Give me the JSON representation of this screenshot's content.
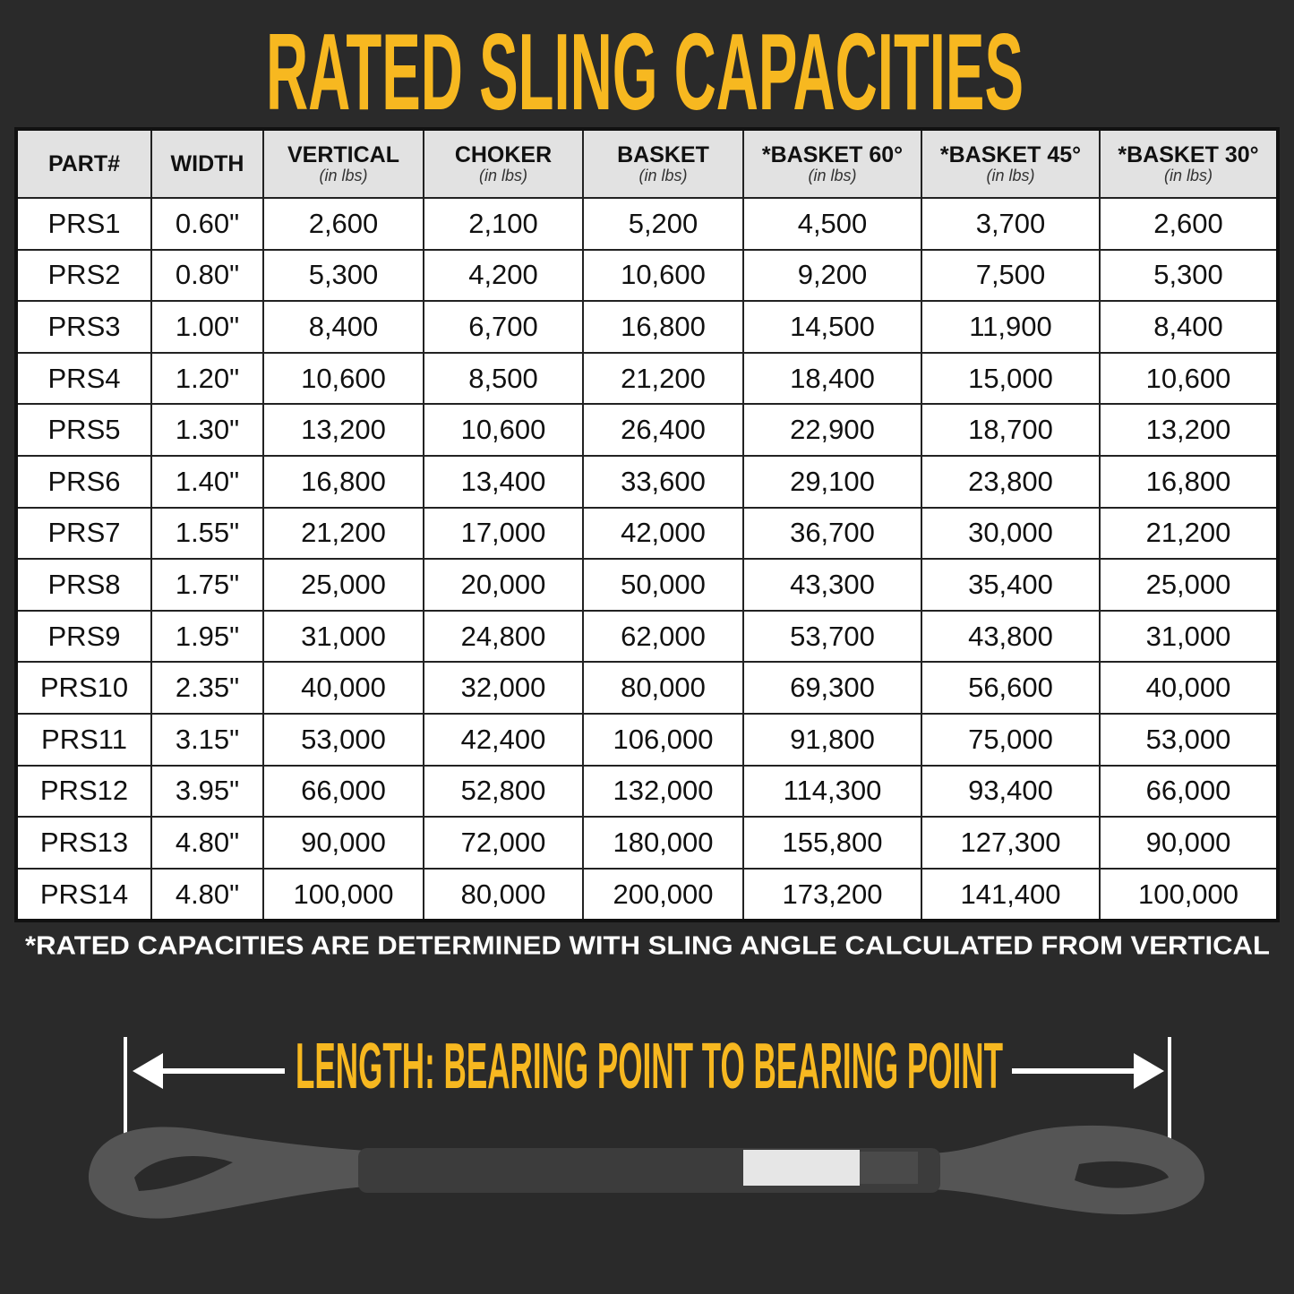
{
  "header": {
    "title": "RATED SLING CAPACITIES"
  },
  "table": {
    "columns": [
      {
        "name": "PART#"
      },
      {
        "name": "WIDTH"
      },
      {
        "name": "VERTICAL",
        "unit": "(in lbs)"
      },
      {
        "name": "CHOKER",
        "unit": "(in lbs)"
      },
      {
        "name": "BASKET",
        "unit": "(in lbs)"
      },
      {
        "name": "*BASKET 60°",
        "unit": "(in lbs)"
      },
      {
        "name": "*BASKET 45°",
        "unit": "(in lbs)"
      },
      {
        "name": "*BASKET 30°",
        "unit": "(in lbs)"
      }
    ],
    "rows": [
      [
        "PRS1",
        "0.60\"",
        "2,600",
        "2,100",
        "5,200",
        "4,500",
        "3,700",
        "2,600"
      ],
      [
        "PRS2",
        "0.80\"",
        "5,300",
        "4,200",
        "10,600",
        "9,200",
        "7,500",
        "5,300"
      ],
      [
        "PRS3",
        "1.00\"",
        "8,400",
        "6,700",
        "16,800",
        "14,500",
        "11,900",
        "8,400"
      ],
      [
        "PRS4",
        "1.20\"",
        "10,600",
        "8,500",
        "21,200",
        "18,400",
        "15,000",
        "10,600"
      ],
      [
        "PRS5",
        "1.30\"",
        "13,200",
        "10,600",
        "26,400",
        "22,900",
        "18,700",
        "13,200"
      ],
      [
        "PRS6",
        "1.40\"",
        "16,800",
        "13,400",
        "33,600",
        "29,100",
        "23,800",
        "16,800"
      ],
      [
        "PRS7",
        "1.55\"",
        "21,200",
        "17,000",
        "42,000",
        "36,700",
        "30,000",
        "21,200"
      ],
      [
        "PRS8",
        "1.75\"",
        "25,000",
        "20,000",
        "50,000",
        "43,300",
        "35,400",
        "25,000"
      ],
      [
        "PRS9",
        "1.95\"",
        "31,000",
        "24,800",
        "62,000",
        "53,700",
        "43,800",
        "31,000"
      ],
      [
        "PRS10",
        "2.35\"",
        "40,000",
        "32,000",
        "80,000",
        "69,300",
        "56,600",
        "40,000"
      ],
      [
        "PRS11",
        "3.15\"",
        "53,000",
        "42,400",
        "106,000",
        "91,800",
        "75,000",
        "53,000"
      ],
      [
        "PRS12",
        "3.95\"",
        "66,000",
        "52,800",
        "132,000",
        "114,300",
        "93,400",
        "66,000"
      ],
      [
        "PRS13",
        "4.80\"",
        "90,000",
        "72,000",
        "180,000",
        "155,800",
        "127,300",
        "90,000"
      ],
      [
        "PRS14",
        "4.80\"",
        "100,000",
        "80,000",
        "200,000",
        "173,200",
        "141,400",
        "100,000"
      ]
    ]
  },
  "footnote": "*RATED CAPACITIES ARE DETERMINED WITH SLING ANGLE CALCULATED FROM VERTICAL",
  "length_label": "LENGTH: BEARING POINT TO BEARING POINT"
}
